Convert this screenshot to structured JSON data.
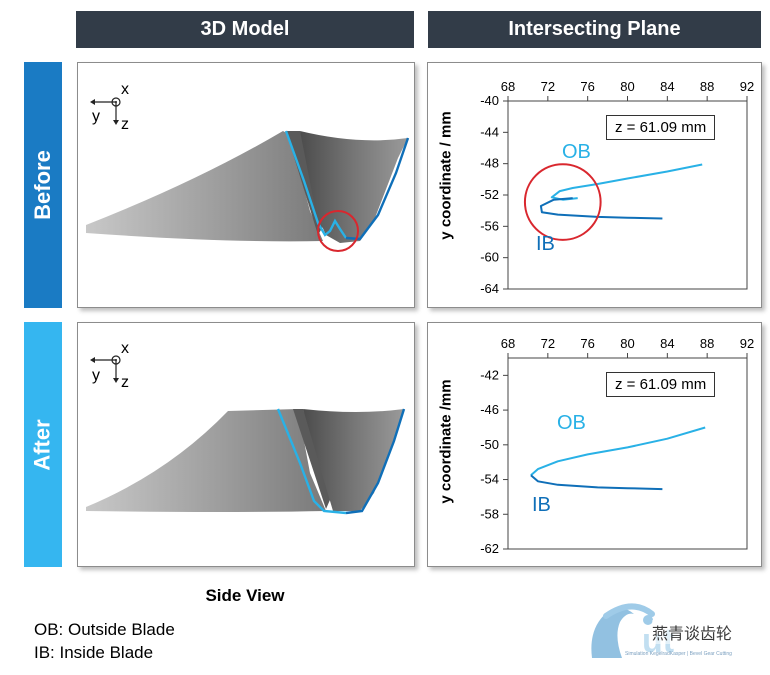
{
  "headers": {
    "model": "3D Model",
    "plane": "Intersecting Plane"
  },
  "rows": {
    "before": "Before",
    "after": "After"
  },
  "colors": {
    "header_bg": "#323c48",
    "before_bar": "#1a7bc4",
    "after_bar": "#35b6f0",
    "outside_blade": "#29b1e6",
    "inside_blade": "#0f6fb8",
    "highlight_circle": "#d9272e"
  },
  "axes_glyph": {
    "x": "x",
    "y": "y",
    "z": "z"
  },
  "side_view": "Side View",
  "legend": {
    "ob": "OB: Outside Blade",
    "ib": "IB: Inside Blade"
  },
  "watermark": "燕青谈齿轮",
  "logo_text": "Simulation KegelradKasper | Bevel Gear Cutting",
  "plots": [
    {
      "z_label": "z = 61.09 mm",
      "ylabel": "y coordinate / mm",
      "ob_label": "OB",
      "ib_label": "IB",
      "chart_data": {
        "type": "line",
        "x_ticks": [
          68,
          72,
          76,
          80,
          84,
          88,
          92
        ],
        "y_ticks": [
          -40,
          -44,
          -48,
          -52,
          -56,
          -60,
          -64
        ],
        "xlim": [
          68,
          92
        ],
        "ylim": [
          -64,
          -40
        ],
        "x_axis_position": "top",
        "grid": false,
        "series": [
          {
            "name": "OB",
            "color": "#29b1e6",
            "points": [
              [
                87.5,
                -48.1
              ],
              [
                84,
                -49.0
              ],
              [
                80,
                -49.9
              ],
              [
                77,
                -50.6
              ],
              [
                74.5,
                -51.1
              ],
              [
                73.2,
                -51.5
              ],
              [
                72.4,
                -52.3
              ],
              [
                73.5,
                -52.6
              ],
              [
                75,
                -52.4
              ]
            ]
          },
          {
            "name": "IB",
            "color": "#0f6fb8",
            "points": [
              [
                74.5,
                -52.4
              ],
              [
                72.6,
                -52.6
              ],
              [
                71.3,
                -53.4
              ],
              [
                71.4,
                -54.2
              ],
              [
                73,
                -54.5
              ],
              [
                77,
                -54.8
              ],
              [
                80,
                -54.9
              ],
              [
                83.5,
                -55.0
              ]
            ]
          }
        ],
        "annotations": [
          {
            "type": "circle",
            "center": [
              73.5,
              -52.9
            ],
            "radius_x_units": 3.8,
            "color": "#d9272e"
          }
        ]
      }
    },
    {
      "z_label": "z = 61.09 mm",
      "ylabel": "y coordinate /mm",
      "ob_label": "OB",
      "ib_label": "IB",
      "chart_data": {
        "type": "line",
        "x_ticks": [
          68,
          72,
          76,
          80,
          84,
          88,
          92
        ],
        "y_ticks": [
          -42,
          -46,
          -50,
          -54,
          -58,
          -62
        ],
        "xlim": [
          68,
          92
        ],
        "ylim": [
          -62,
          -40
        ],
        "x_axis_position": "top",
        "grid": false,
        "series": [
          {
            "name": "OB",
            "color": "#29b1e6",
            "points": [
              [
                87.8,
                -48.0
              ],
              [
                84,
                -49.3
              ],
              [
                80,
                -50.3
              ],
              [
                76,
                -51.1
              ],
              [
                73,
                -51.9
              ],
              [
                71,
                -52.8
              ],
              [
                70.3,
                -53.5
              ]
            ]
          },
          {
            "name": "IB",
            "color": "#0f6fb8",
            "points": [
              [
                70.3,
                -53.5
              ],
              [
                71,
                -54.2
              ],
              [
                73,
                -54.6
              ],
              [
                77,
                -54.9
              ],
              [
                80,
                -55.0
              ],
              [
                83.5,
                -55.1
              ]
            ]
          }
        ]
      }
    }
  ]
}
